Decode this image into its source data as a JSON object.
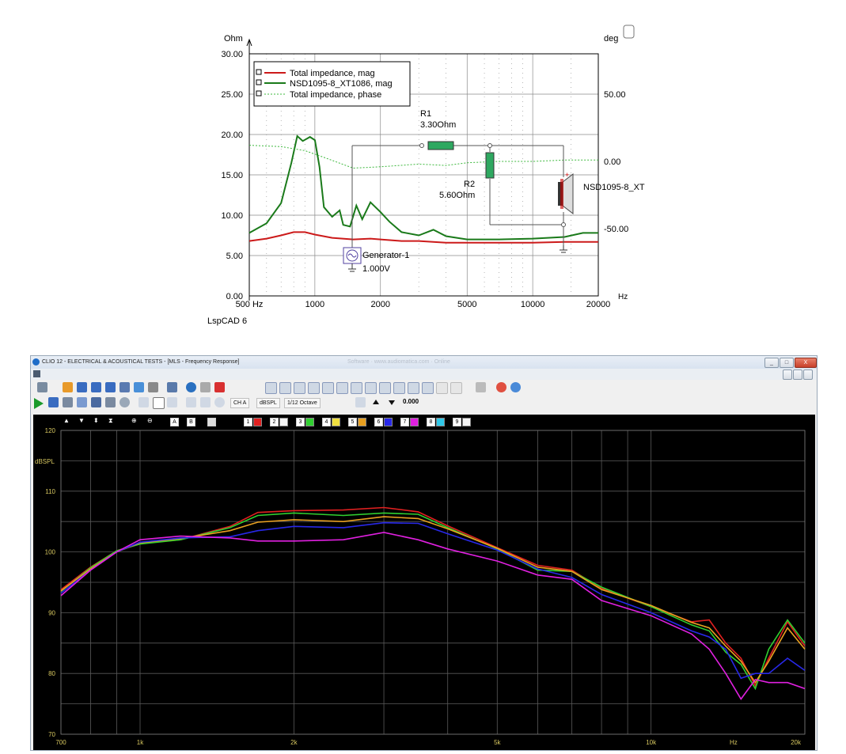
{
  "lspcad": {
    "y_unit": "Ohm",
    "y2_unit": "deg",
    "x_unit": "Hz",
    "y_ticks": [
      "30.00",
      "25.00",
      "20.00",
      "15.00",
      "10.00",
      "5.00",
      "0.00"
    ],
    "y2_ticks": [
      "50.00",
      "0.00",
      "-50.00"
    ],
    "x_ticks": [
      "500 Hz",
      "1000",
      "2000",
      "5000",
      "10000",
      "20000"
    ],
    "legend": [
      "Total impedance, mag",
      "NSD1095-8_XT1086, mag",
      "Total impedance, phase"
    ],
    "schematic": {
      "r1_name": "R1",
      "r1_value": "3.30Ohm",
      "r2_name": "R2",
      "r2_value": "5.60Ohm",
      "gen_name": "Generator-1",
      "gen_value": "1.000V",
      "driver_name": "NSD1095-8_XT"
    },
    "footer": "LspCAD 6",
    "colors": {
      "total_mag": "#cc1a1a",
      "driver_mag": "#1a7a1a",
      "phase": "#3db83d"
    }
  },
  "clio": {
    "title": "CLIO 12 - ELECTRICAL & ACOUSTICAL TESTS - [MLS - Frequency Response]",
    "blurred_title": "Software · www.audiomatica.com · Online",
    "window_buttons": [
      "_",
      "□",
      "X"
    ],
    "channel_label": "CH A",
    "unit_label": "dBSPL",
    "smoothing_label": "1/12 Octave",
    "value_label": "0.000",
    "plot": {
      "y_unit": "dBSPL",
      "y_ticks": [
        "120",
        "110",
        "100",
        "90",
        "80",
        "70"
      ],
      "x_ticks": [
        "700",
        "1k",
        "2k",
        "5k",
        "10k",
        "Hz",
        "20k"
      ],
      "channel_buttons": [
        "1",
        "2",
        "3",
        "4",
        "5",
        "6",
        "7",
        "8",
        "9"
      ],
      "marker_buttons": [
        "A",
        "B"
      ],
      "series_colors": [
        "#e02020",
        "#30d030",
        "#e8a020",
        "#2828e8",
        "#e020e0"
      ]
    }
  },
  "chart_data": [
    {
      "type": "line",
      "title": "",
      "xlabel": "Hz",
      "ylabel": "Ohm",
      "y2label": "deg",
      "xscale": "log",
      "xlim": [
        500,
        20000
      ],
      "ylim": [
        0,
        30
      ],
      "y2lim": [
        -100,
        80
      ],
      "grid": true,
      "legend_position": "top-left",
      "series": [
        {
          "name": "Total impedance, mag",
          "axis": "left",
          "points": [
            [
              500,
              6.8
            ],
            [
              600,
              7.1
            ],
            [
              700,
              7.5
            ],
            [
              800,
              7.9
            ],
            [
              900,
              7.9
            ],
            [
              1000,
              7.6
            ],
            [
              1200,
              7.2
            ],
            [
              1500,
              7.0
            ],
            [
              1800,
              7.1
            ],
            [
              2000,
              7.0
            ],
            [
              2500,
              6.8
            ],
            [
              3000,
              6.8
            ],
            [
              4000,
              6.6
            ],
            [
              5000,
              6.6
            ],
            [
              7000,
              6.6
            ],
            [
              10000,
              6.6
            ],
            [
              14000,
              6.7
            ],
            [
              20000,
              6.7
            ]
          ]
        },
        {
          "name": "NSD1095-8_XT1086, mag",
          "axis": "left",
          "points": [
            [
              500,
              7.8
            ],
            [
              600,
              9.0
            ],
            [
              700,
              11.5
            ],
            [
              780,
              16.5
            ],
            [
              830,
              19.8
            ],
            [
              880,
              19.2
            ],
            [
              950,
              19.7
            ],
            [
              1000,
              19.3
            ],
            [
              1050,
              16.0
            ],
            [
              1100,
              11.0
            ],
            [
              1200,
              9.8
            ],
            [
              1300,
              10.6
            ],
            [
              1350,
              8.8
            ],
            [
              1450,
              8.6
            ],
            [
              1550,
              11.2
            ],
            [
              1650,
              9.5
            ],
            [
              1800,
              11.6
            ],
            [
              2000,
              10.4
            ],
            [
              2200,
              9.2
            ],
            [
              2500,
              7.9
            ],
            [
              3000,
              7.5
            ],
            [
              3500,
              8.2
            ],
            [
              4000,
              7.4
            ],
            [
              5000,
              7.0
            ],
            [
              7000,
              7.0
            ],
            [
              10000,
              7.1
            ],
            [
              14000,
              7.3
            ],
            [
              17000,
              7.8
            ],
            [
              20000,
              7.8
            ]
          ]
        },
        {
          "name": "Total impedance, phase",
          "axis": "right",
          "points": [
            [
              500,
              12
            ],
            [
              700,
              11
            ],
            [
              900,
              8
            ],
            [
              1100,
              3
            ],
            [
              1500,
              -5
            ],
            [
              2000,
              -4
            ],
            [
              3000,
              -2
            ],
            [
              4000,
              -3
            ],
            [
              5000,
              -1
            ],
            [
              7000,
              0
            ],
            [
              10000,
              0
            ],
            [
              14000,
              1
            ],
            [
              20000,
              1
            ]
          ]
        }
      ]
    },
    {
      "type": "line",
      "title": "",
      "xlabel": "Hz",
      "ylabel": "dBSPL",
      "xscale": "log",
      "xlim": [
        700,
        20000
      ],
      "ylim": [
        70,
        120
      ],
      "grid": true,
      "series": [
        {
          "points": [
            [
              700,
              93.8
            ],
            [
              800,
              97.5
            ],
            [
              900,
              100.2
            ],
            [
              1000,
              101.4
            ],
            [
              1200,
              102.0
            ],
            [
              1500,
              104.2
            ],
            [
              1700,
              106.5
            ],
            [
              2000,
              106.8
            ],
            [
              2500,
              106.9
            ],
            [
              3000,
              107.3
            ],
            [
              3500,
              106.6
            ],
            [
              4000,
              104.3
            ],
            [
              5000,
              100.7
            ],
            [
              6000,
              97.8
            ],
            [
              7000,
              97.0
            ],
            [
              8000,
              94.0
            ],
            [
              10000,
              91.0
            ],
            [
              12000,
              88.5
            ],
            [
              13000,
              88.8
            ],
            [
              14000,
              85.0
            ],
            [
              15000,
              82.5
            ],
            [
              16000,
              78.0
            ],
            [
              17000,
              82.5
            ],
            [
              18500,
              88.5
            ],
            [
              20000,
              84.5
            ]
          ]
        },
        {
          "points": [
            [
              700,
              93.5
            ],
            [
              800,
              97.4
            ],
            [
              900,
              100.2
            ],
            [
              1000,
              101.3
            ],
            [
              1200,
              102.0
            ],
            [
              1500,
              104.0
            ],
            [
              1700,
              106.0
            ],
            [
              2000,
              106.4
            ],
            [
              2500,
              106.0
            ],
            [
              3000,
              106.4
            ],
            [
              3500,
              106.2
            ],
            [
              4000,
              104.0
            ],
            [
              5000,
              100.5
            ],
            [
              6000,
              97.0
            ],
            [
              7000,
              96.8
            ],
            [
              8000,
              94.2
            ],
            [
              10000,
              91.0
            ],
            [
              12000,
              88.0
            ],
            [
              13000,
              87.0
            ],
            [
              14000,
              83.5
            ],
            [
              15000,
              81.5
            ],
            [
              16000,
              77.5
            ],
            [
              17000,
              84.0
            ],
            [
              18500,
              88.8
            ],
            [
              20000,
              85.0
            ]
          ]
        },
        {
          "points": [
            [
              700,
              93.6
            ],
            [
              800,
              97.2
            ],
            [
              900,
              100.0
            ],
            [
              1000,
              101.5
            ],
            [
              1200,
              102.2
            ],
            [
              1500,
              103.5
            ],
            [
              1700,
              104.9
            ],
            [
              2000,
              105.3
            ],
            [
              2500,
              105.0
            ],
            [
              3000,
              105.8
            ],
            [
              3500,
              105.5
            ],
            [
              4000,
              103.8
            ],
            [
              5000,
              100.6
            ],
            [
              6000,
              97.5
            ],
            [
              7000,
              96.8
            ],
            [
              8000,
              93.8
            ],
            [
              10000,
              91.2
            ],
            [
              12000,
              88.4
            ],
            [
              13000,
              87.5
            ],
            [
              14000,
              84.5
            ],
            [
              15000,
              82.0
            ],
            [
              16000,
              78.5
            ],
            [
              17000,
              82.0
            ],
            [
              18500,
              87.5
            ],
            [
              20000,
              84.0
            ]
          ]
        },
        {
          "points": [
            [
              700,
              93.2
            ],
            [
              800,
              97.0
            ],
            [
              900,
              100.0
            ],
            [
              1000,
              101.6
            ],
            [
              1200,
              102.3
            ],
            [
              1500,
              102.5
            ],
            [
              1700,
              103.5
            ],
            [
              2000,
              104.2
            ],
            [
              2500,
              104.0
            ],
            [
              3000,
              104.8
            ],
            [
              3500,
              104.7
            ],
            [
              4000,
              103.0
            ],
            [
              5000,
              100.3
            ],
            [
              6000,
              97.2
            ],
            [
              7000,
              95.8
            ],
            [
              8000,
              93.0
            ],
            [
              10000,
              90.0
            ],
            [
              12000,
              87.0
            ],
            [
              13000,
              86.0
            ],
            [
              14000,
              84.0
            ],
            [
              15000,
              79.2
            ],
            [
              16000,
              80.0
            ],
            [
              17000,
              80.0
            ],
            [
              18500,
              82.5
            ],
            [
              20000,
              80.5
            ]
          ]
        },
        {
          "points": [
            [
              700,
              92.8
            ],
            [
              800,
              97.0
            ],
            [
              900,
              100.0
            ],
            [
              1000,
              102.0
            ],
            [
              1200,
              102.6
            ],
            [
              1500,
              102.3
            ],
            [
              1700,
              101.8
            ],
            [
              2000,
              101.8
            ],
            [
              2500,
              102.0
            ],
            [
              3000,
              103.2
            ],
            [
              3500,
              102.0
            ],
            [
              4000,
              100.5
            ],
            [
              5000,
              98.5
            ],
            [
              6000,
              96.2
            ],
            [
              7000,
              95.5
            ],
            [
              8000,
              92.0
            ],
            [
              10000,
              89.5
            ],
            [
              12000,
              86.5
            ],
            [
              13000,
              84.0
            ],
            [
              14000,
              80.0
            ],
            [
              15000,
              75.8
            ],
            [
              16000,
              79.0
            ],
            [
              17000,
              78.5
            ],
            [
              18500,
              78.5
            ],
            [
              20000,
              77.5
            ]
          ]
        }
      ]
    }
  ]
}
